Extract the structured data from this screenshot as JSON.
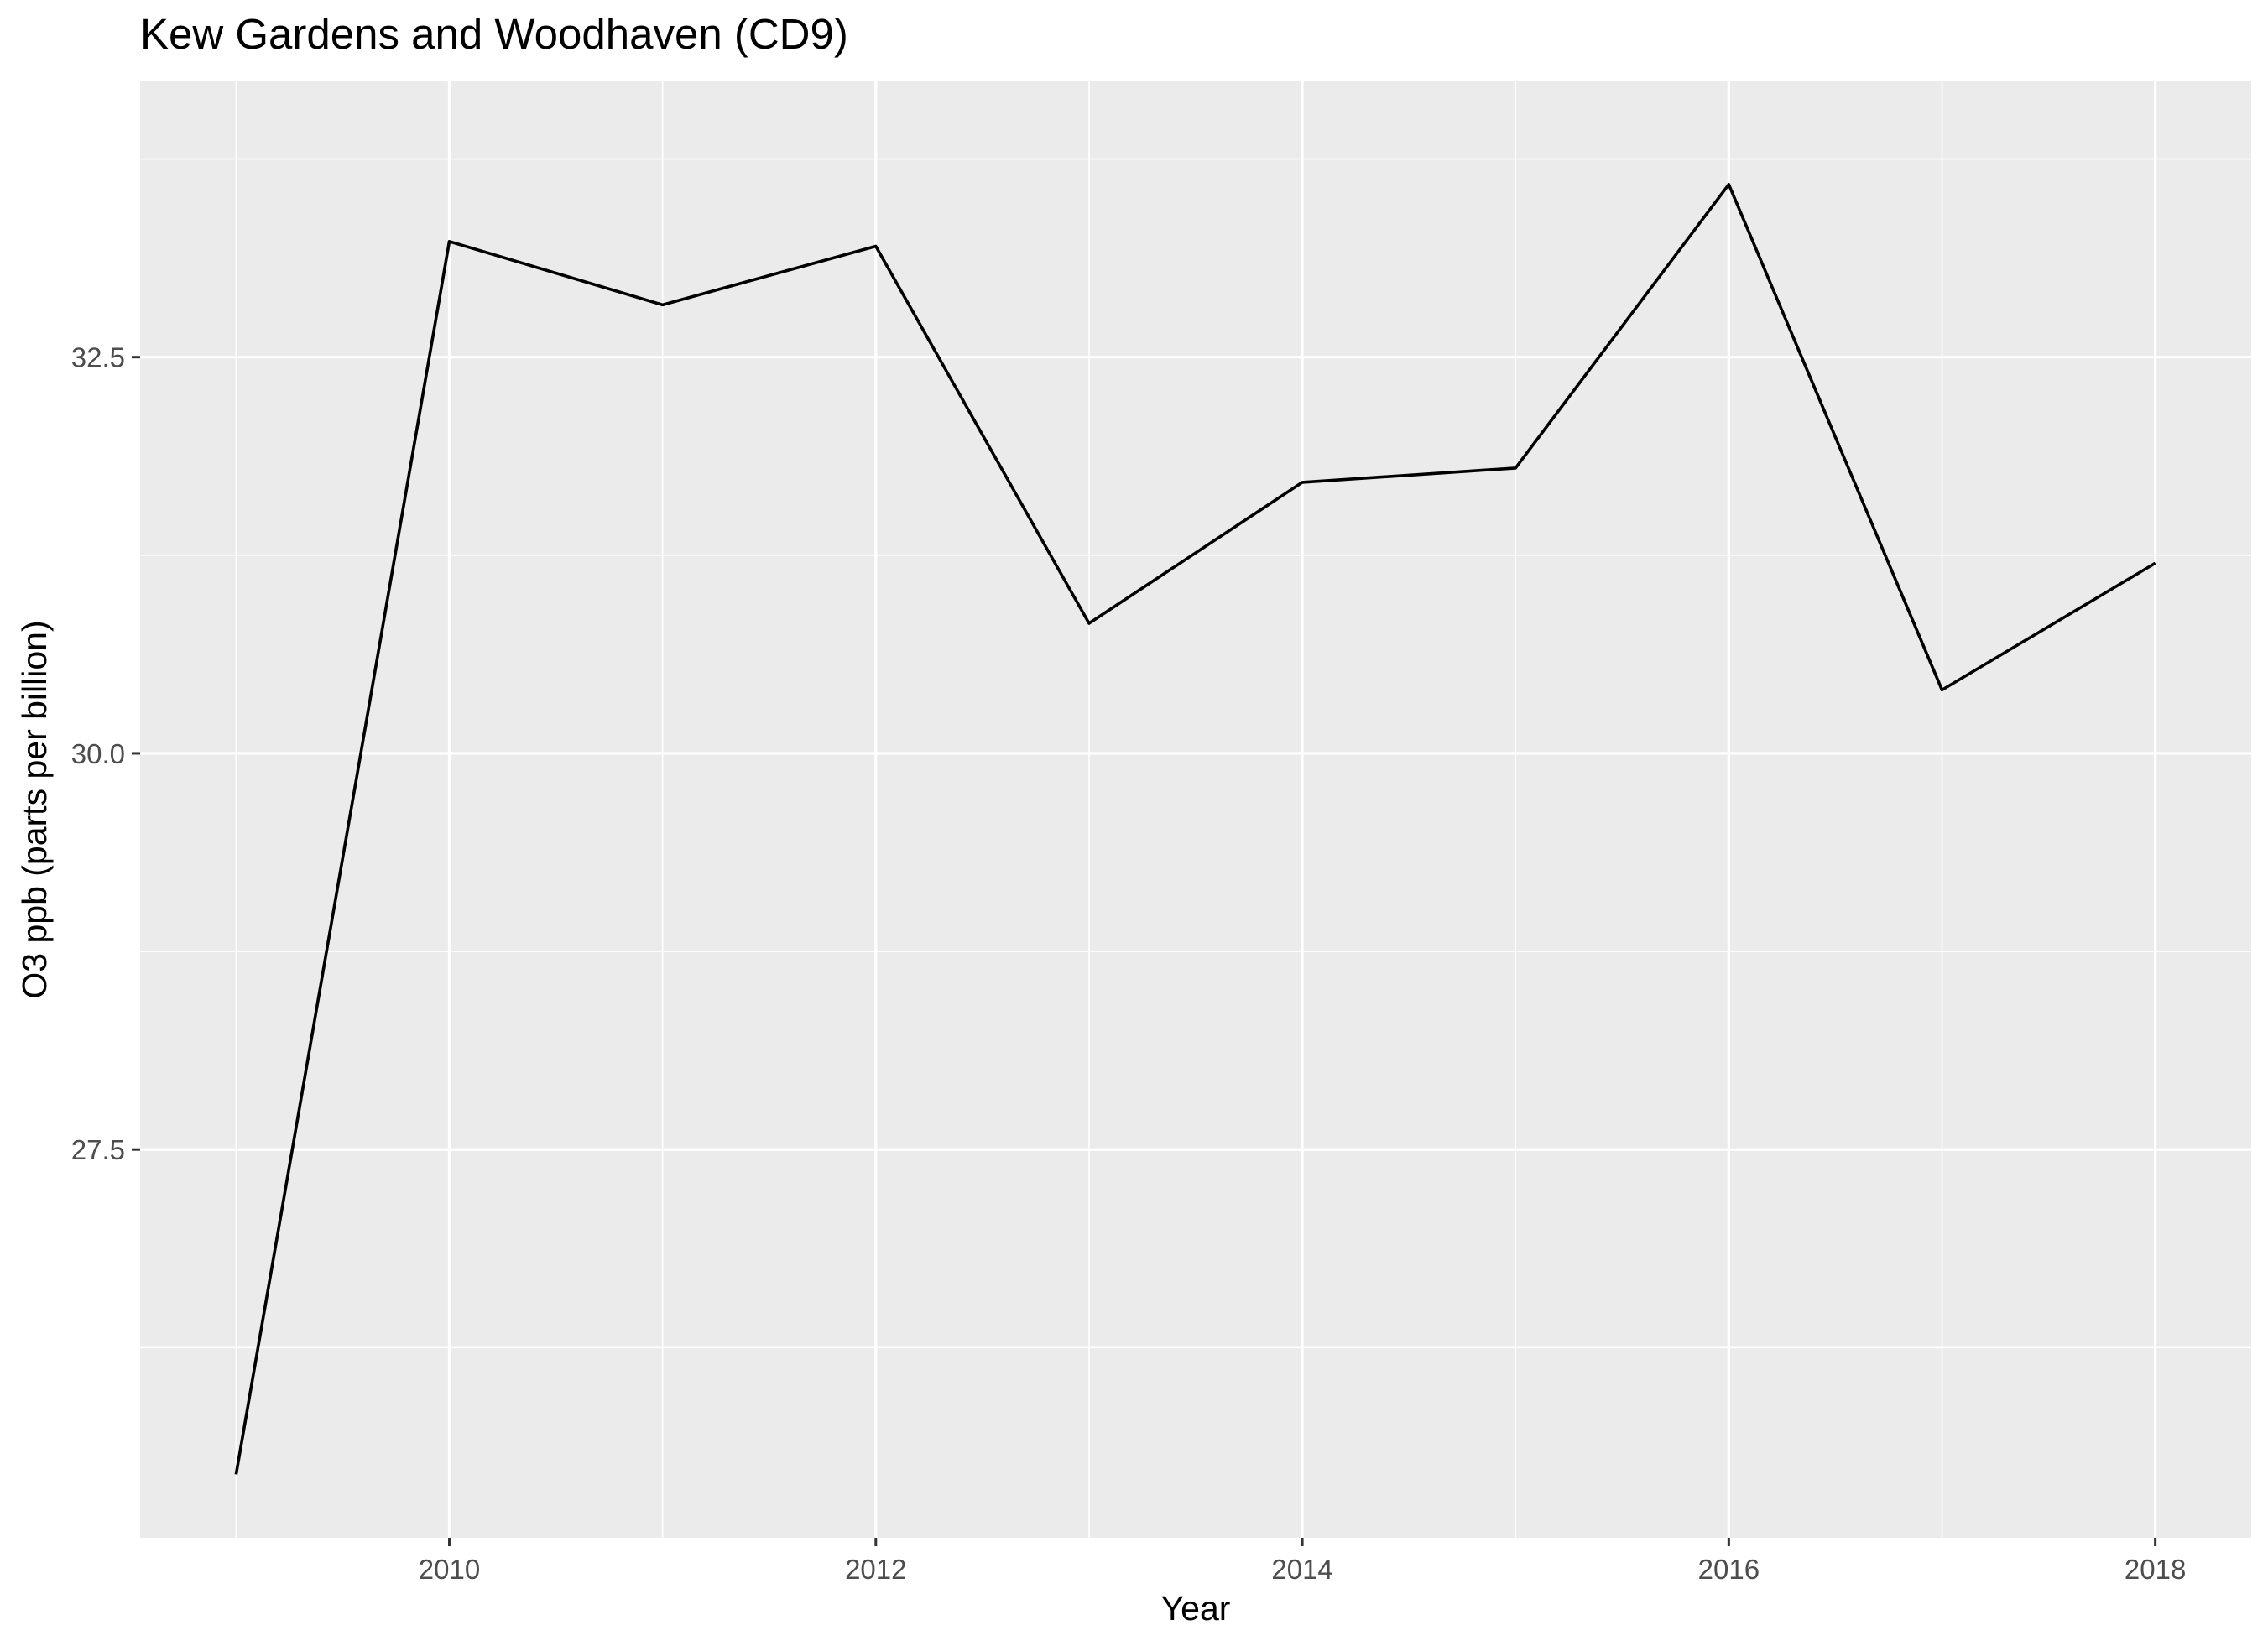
{
  "chart_data": {
    "type": "line",
    "title": "Kew Gardens and Woodhaven (CD9)",
    "xlabel": "Year",
    "ylabel": "O3 ppb (parts per billion)",
    "x": [
      2009,
      2010,
      2011,
      2012,
      2013,
      2014,
      2015,
      2016,
      2017,
      2018
    ],
    "series": [
      {
        "values": [
          25.45,
          33.23,
          32.83,
          33.2,
          30.82,
          31.71,
          31.8,
          33.59,
          30.4,
          31.2
        ]
      }
    ],
    "xlim": [
      2008.55,
      2018.45
    ],
    "ylim": [
      25.05,
      34.24
    ],
    "x_ticks": [
      2010,
      2012,
      2014,
      2016,
      2018
    ],
    "x_tick_labels": [
      "2010",
      "2012",
      "2014",
      "2016",
      "2018"
    ],
    "y_ticks": [
      27.5,
      30.0,
      32.5
    ],
    "y_tick_labels": [
      "27.5",
      "30.0",
      "32.5"
    ],
    "grid": true,
    "legend": "none",
    "colors": {
      "panel": "#ebebeb",
      "grid": "#ffffff",
      "line": "#000000",
      "tick_text": "#4d4d4d",
      "tick": "#333333"
    }
  }
}
